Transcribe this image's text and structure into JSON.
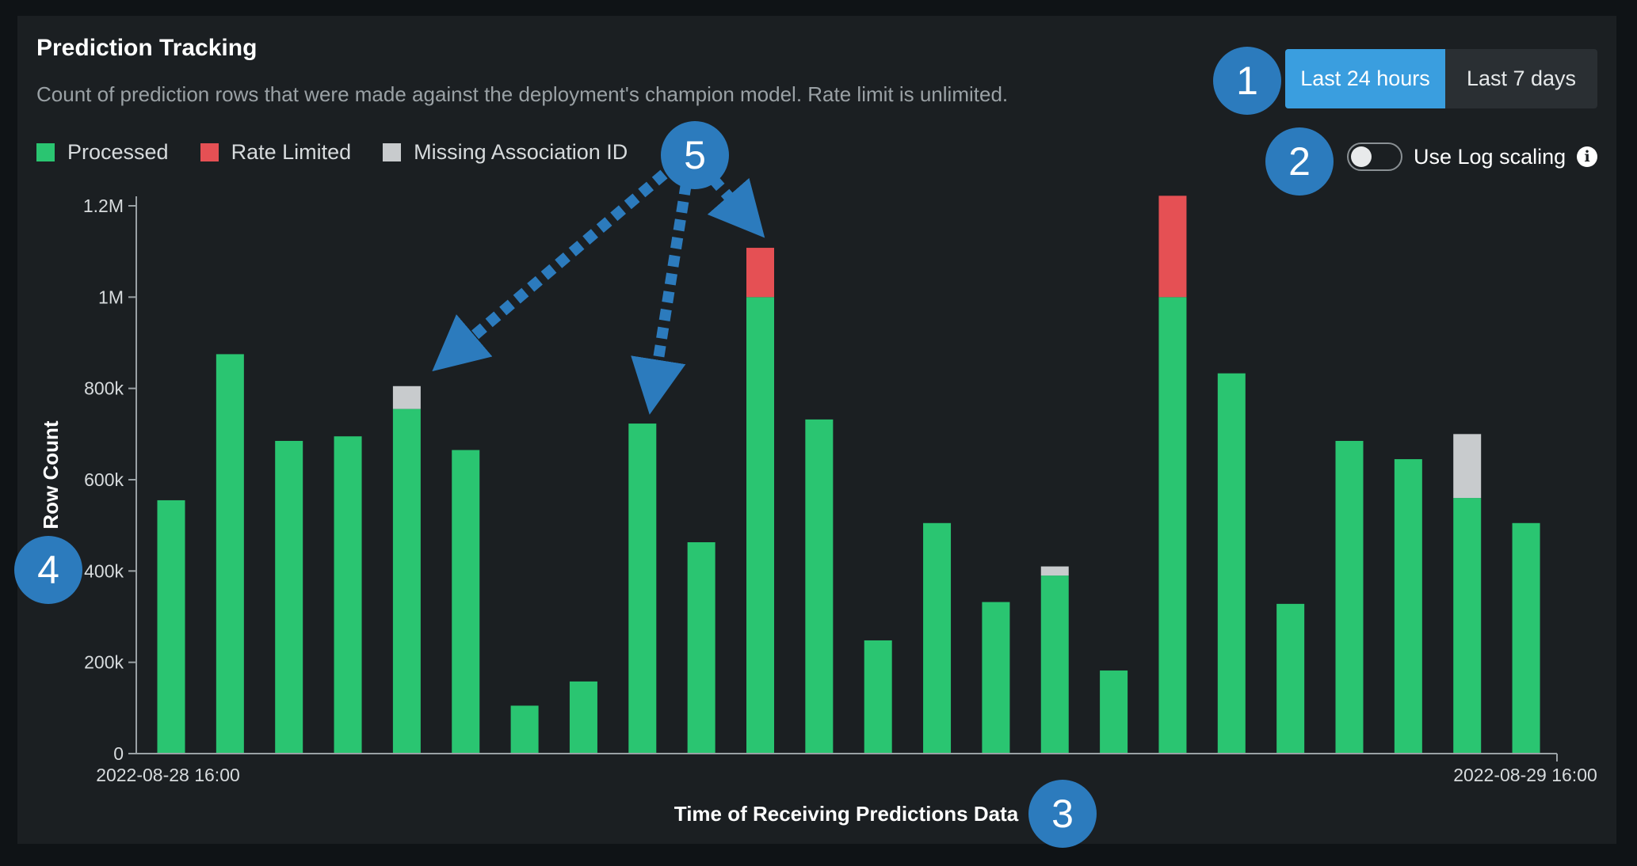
{
  "header": {
    "title": "Prediction Tracking",
    "subtitle": "Count of prediction rows that were made against the deployment's champion model. Rate limit is unlimited."
  },
  "legend": [
    {
      "label": "Processed",
      "color": "#2ac571"
    },
    {
      "label": "Rate Limited",
      "color": "#e55054"
    },
    {
      "label": "Missing Association ID",
      "color": "#c8cbcd"
    }
  ],
  "time_range": {
    "options": [
      "Last 24 hours",
      "Last 7 days"
    ],
    "selected": "Last 24 hours"
  },
  "log_scale": {
    "label": "Use Log scaling",
    "enabled": false,
    "info_icon": "info-icon"
  },
  "callouts": {
    "c1": "1",
    "c2": "2",
    "c3": "3",
    "c4": "4",
    "c5": "5"
  },
  "chart_data": {
    "type": "bar",
    "stacked": true,
    "xlabel": "Time of Receiving Predictions Data",
    "ylabel": "Row Count",
    "x_tick_labels": [
      "2022-08-28 16:00",
      "2022-08-29 16:00"
    ],
    "y_ticks": [
      0,
      200000,
      400000,
      600000,
      800000,
      1000000,
      1200000
    ],
    "y_tick_labels": [
      "0",
      "200k",
      "400k",
      "600k",
      "800k",
      "1M",
      "1.2M"
    ],
    "ylim": [
      0,
      1200000
    ],
    "grid": false,
    "series": [
      {
        "name": "Processed",
        "color": "#2ac571",
        "values": [
          555000,
          875000,
          685000,
          695000,
          755000,
          665000,
          105000,
          158000,
          723000,
          463000,
          1000000,
          732000,
          248000,
          505000,
          332000,
          390000,
          182000,
          1000000,
          833000,
          328000,
          685000,
          645000,
          560000,
          505000
        ]
      },
      {
        "name": "Rate Limited",
        "color": "#e55054",
        "values": [
          0,
          0,
          0,
          0,
          0,
          0,
          0,
          0,
          0,
          0,
          108000,
          0,
          0,
          0,
          0,
          0,
          0,
          222000,
          0,
          0,
          0,
          0,
          0,
          0
        ]
      },
      {
        "name": "Missing Association ID",
        "color": "#c8cbcd",
        "values": [
          0,
          0,
          0,
          0,
          50000,
          0,
          0,
          0,
          0,
          0,
          0,
          0,
          0,
          0,
          0,
          20000,
          0,
          0,
          0,
          0,
          0,
          0,
          140000,
          0
        ]
      }
    ]
  }
}
